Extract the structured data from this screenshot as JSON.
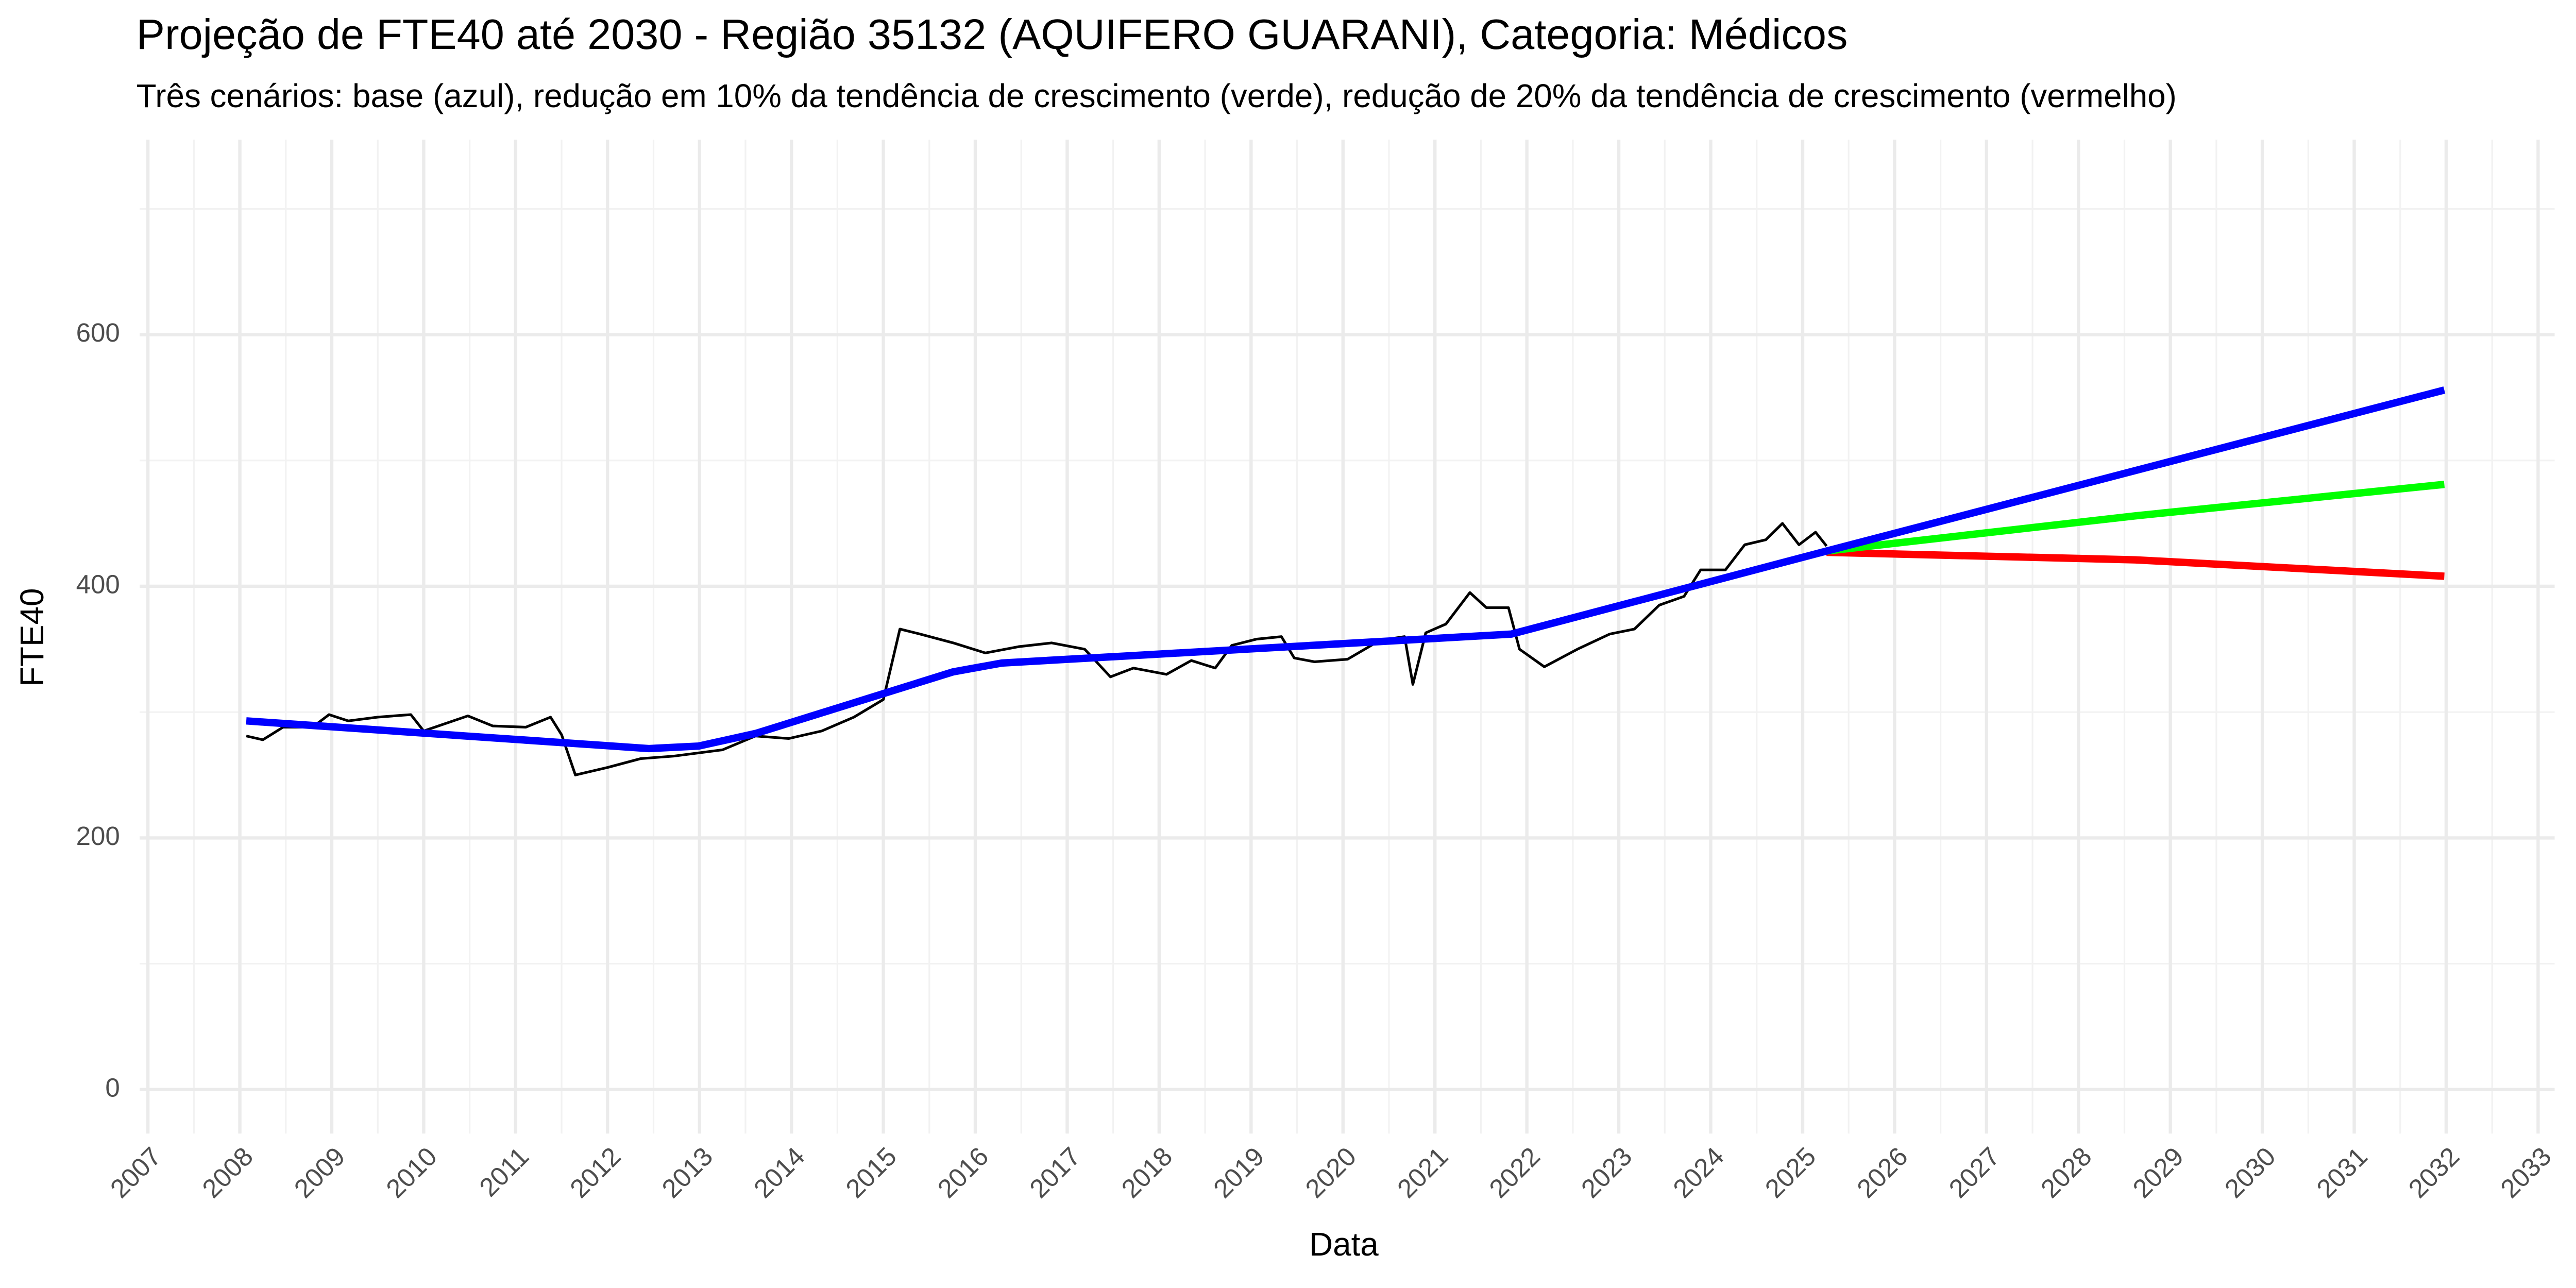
{
  "chart_data": {
    "type": "line",
    "title": "Projeção de FTE40 até 2030 - Região 35132 (AQUIFERO GUARANI), Categoria: Médicos",
    "subtitle": "Três cenários: base (azul), redução em 10% da tendência de crescimento (verde), redução de 20% da tendência de crescimento (vermelho)",
    "x_label": "Data",
    "y_label": "FTE40",
    "xlim": [
      2006.91,
      2033.18
    ],
    "xticks": [
      2007,
      2008,
      2009,
      2010,
      2011,
      2012,
      2013,
      2014,
      2015,
      2016,
      2017,
      2018,
      2019,
      2020,
      2021,
      2022,
      2023,
      2024,
      2025,
      2026,
      2027,
      2028,
      2029,
      2030,
      2031,
      2032,
      2033
    ],
    "ylim": [
      -35,
      755
    ],
    "yticks": [
      0,
      200,
      400,
      600
    ],
    "grid": true,
    "series": [
      {
        "color": "#000000",
        "x": [
          2008.07,
          2008.25,
          2008.47,
          2008.79,
          2008.97,
          2009.18,
          2009.5,
          2009.86,
          2010.0,
          2010.48,
          2010.75,
          2011.11,
          2011.38,
          2011.5,
          2011.65,
          2012.0,
          2012.36,
          2012.72,
          2013.25,
          2013.61,
          2013.97,
          2014.33,
          2014.68,
          2015.0,
          2015.18,
          2015.4,
          2015.76,
          2016.11,
          2016.47,
          2016.83,
          2017.19,
          2017.47,
          2017.72,
          2018.08,
          2018.35,
          2018.61,
          2018.79,
          2019.06,
          2019.33,
          2019.47,
          2019.69,
          2020.05,
          2020.4,
          2020.67,
          2020.76,
          2020.9,
          2021.12,
          2021.38,
          2021.56,
          2021.8,
          2021.92,
          2022.19,
          2022.55,
          2022.9,
          2023.17,
          2023.44,
          2023.71,
          2023.89,
          2024.16,
          2024.37,
          2024.6,
          2024.78,
          2024.96,
          2025.14,
          2025.26
        ],
        "values": [
          281,
          278,
          288,
          288,
          298,
          293,
          296,
          298,
          285,
          297,
          289,
          288,
          296,
          282,
          250,
          256,
          263,
          265,
          270,
          281,
          279,
          285,
          296,
          310,
          366,
          362,
          355,
          347,
          352,
          355,
          350,
          328,
          335,
          330,
          341,
          335,
          353,
          358,
          360,
          343,
          340,
          342,
          357,
          360,
          322,
          363,
          370,
          395,
          383,
          383,
          350,
          336,
          350,
          362,
          366,
          385,
          392,
          413,
          413,
          433,
          437,
          450,
          433,
          443,
          432
        ],
        "width": 1.6
      },
      {
        "color": "#ff0000",
        "x": [
          2025.26,
          2028.62,
          2031.98
        ],
        "values": [
          427,
          421,
          408
        ],
        "width": 4.5
      },
      {
        "color": "#00ff00",
        "x": [
          2025.26,
          2028.62,
          2031.98
        ],
        "values": [
          428,
          456,
          481
        ],
        "width": 4.5
      },
      {
        "color": "#0000ff",
        "x": [
          2008.07,
          2012.45,
          2012.99,
          2013.61,
          2015.76,
          2016.29,
          2021.83,
          2025.26,
          2031.98
        ],
        "values": [
          293,
          271,
          273,
          283,
          332,
          339,
          362,
          428,
          556
        ],
        "width": 4.5
      }
    ]
  }
}
